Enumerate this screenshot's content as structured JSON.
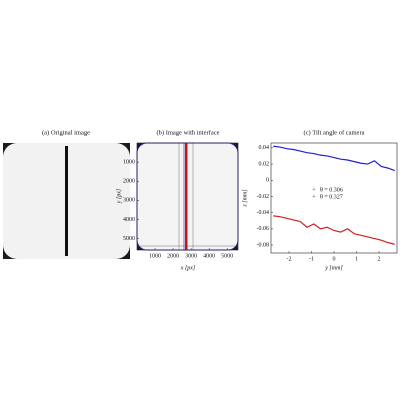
{
  "chart_data": [
    {
      "type": "image",
      "title": "(a)  Original image"
    },
    {
      "type": "image",
      "title": "(b)  Image with interface",
      "xlabel": "x [px]",
      "ylabel": "y [px]",
      "xlim": [
        0,
        5600
      ],
      "ylim": [
        5600,
        0
      ],
      "xticks": [
        1000,
        2000,
        3000,
        4000,
        5000
      ],
      "yticks": [
        1000,
        2000,
        3000,
        4000,
        5000
      ]
    },
    {
      "type": "line",
      "title": "(c)  Tilt angle of camera",
      "xlabel": "y [mm]",
      "ylabel": "z [mm]",
      "xlim": [
        -2.8,
        2.8
      ],
      "ylim": [
        -0.0898,
        0.046
      ],
      "xticks": [
        -2,
        -1,
        0,
        1,
        2
      ],
      "yticks": [
        -0.08,
        -0.06,
        -0.04,
        -0.02,
        0,
        0.02,
        0.04
      ],
      "x": [
        -2.7,
        -2.4,
        -2.1,
        -1.8,
        -1.5,
        -1.2,
        -0.9,
        -0.6,
        -0.3,
        0,
        0.3,
        0.6,
        0.9,
        1.2,
        1.5,
        1.8,
        2.1,
        2.4,
        2.7
      ],
      "series": [
        {
          "name": "θ = 0.306",
          "color": "#2020d0",
          "values": [
            0.042,
            0.041,
            0.039,
            0.038,
            0.036,
            0.034,
            0.033,
            0.031,
            0.03,
            0.028,
            0.026,
            0.025,
            0.023,
            0.021,
            0.02,
            0.024,
            0.017,
            0.015,
            0.012
          ]
        },
        {
          "name": "θ = 0.327",
          "color": "#d02020",
          "values": [
            -0.044,
            -0.045,
            -0.047,
            -0.049,
            -0.051,
            -0.058,
            -0.054,
            -0.06,
            -0.058,
            -0.062,
            -0.064,
            -0.06,
            -0.066,
            -0.068,
            -0.07,
            -0.072,
            -0.074,
            -0.077,
            -0.079
          ]
        }
      ]
    }
  ]
}
